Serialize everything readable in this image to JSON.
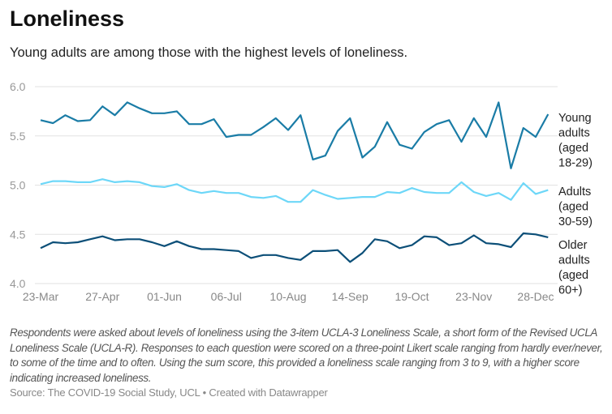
{
  "title": "Loneliness",
  "subtitle": "Young adults are among those with the highest levels of loneliness.",
  "notes": "Respondents were asked about levels of loneliness using the 3-item UCLA-3 Loneliness Scale, a short form of the Revised UCLA Loneliness Scale (UCLA-R). Responses to each question were scored on a three-point Likert scale ranging from hardly ever/never, to some of the time and to often. Using the sum score, this provided a loneliness scale ranging from 3 to 9, with a higher score indicating increased loneliness.",
  "source": "Source: The COVID-19 Social Study, UCL • Created with Datawrapper",
  "chart_data": {
    "type": "line",
    "title": "Loneliness",
    "xlabel": "",
    "ylabel": "",
    "ylim": [
      4.0,
      6.0
    ],
    "yticks": [
      "6.0",
      "5.5",
      "5.0",
      "4.5",
      "4.0"
    ],
    "grid": true,
    "legend": "direct labels right",
    "xticks": [
      "23-Mar",
      "27-Apr",
      "01-Jun",
      "06-Jul",
      "10-Aug",
      "14-Sep",
      "19-Oct",
      "23-Nov",
      "28-Dec"
    ],
    "x": [
      "23-Mar",
      "30-Mar",
      "06-Apr",
      "13-Apr",
      "20-Apr",
      "27-Apr",
      "04-May",
      "11-May",
      "18-May",
      "25-May",
      "01-Jun",
      "08-Jun",
      "15-Jun",
      "22-Jun",
      "29-Jun",
      "06-Jul",
      "13-Jul",
      "20-Jul",
      "27-Jul",
      "03-Aug",
      "10-Aug",
      "17-Aug",
      "24-Aug",
      "31-Aug",
      "07-Sep",
      "14-Sep",
      "21-Sep",
      "28-Sep",
      "05-Oct",
      "12-Oct",
      "19-Oct",
      "26-Oct",
      "02-Nov",
      "09-Nov",
      "16-Nov",
      "23-Nov",
      "30-Nov",
      "07-Dec",
      "14-Dec",
      "21-Dec",
      "28-Dec",
      "04-Jan"
    ],
    "series": [
      {
        "name": "Young adults (aged 18-29)",
        "label_lines": [
          "Young",
          "adults",
          "(aged",
          "18-29)"
        ],
        "color": "#1a7ca6",
        "values": [
          5.66,
          5.63,
          5.71,
          5.65,
          5.66,
          5.8,
          5.71,
          5.84,
          5.78,
          5.73,
          5.73,
          5.75,
          5.62,
          5.62,
          5.67,
          5.49,
          5.51,
          5.51,
          5.59,
          5.68,
          5.56,
          5.71,
          5.26,
          5.3,
          5.55,
          5.68,
          5.28,
          5.39,
          5.64,
          5.41,
          5.37,
          5.54,
          5.62,
          5.66,
          5.44,
          5.68,
          5.49,
          5.84,
          5.17,
          5.58,
          5.49,
          5.72
        ]
      },
      {
        "name": "Adults (aged 30-59)",
        "label_lines": [
          "Adults",
          "(aged",
          "30-59)"
        ],
        "color": "#6dd7f8",
        "values": [
          5.01,
          5.04,
          5.04,
          5.03,
          5.03,
          5.06,
          5.03,
          5.04,
          5.03,
          4.99,
          4.98,
          5.01,
          4.95,
          4.92,
          4.94,
          4.92,
          4.92,
          4.88,
          4.87,
          4.89,
          4.83,
          4.83,
          4.95,
          4.9,
          4.86,
          4.87,
          4.88,
          4.88,
          4.93,
          4.92,
          4.97,
          4.93,
          4.92,
          4.92,
          5.03,
          4.93,
          4.89,
          4.92,
          4.85,
          5.02,
          4.91,
          4.95
        ]
      },
      {
        "name": "Older adults (aged 60+)",
        "label_lines": [
          "Older",
          "adults",
          "(aged",
          "60+)"
        ],
        "color": "#0c4f78",
        "values": [
          4.36,
          4.42,
          4.41,
          4.42,
          4.45,
          4.48,
          4.44,
          4.45,
          4.45,
          4.42,
          4.38,
          4.43,
          4.38,
          4.35,
          4.35,
          4.34,
          4.33,
          4.26,
          4.29,
          4.29,
          4.26,
          4.24,
          4.33,
          4.33,
          4.34,
          4.22,
          4.31,
          4.45,
          4.43,
          4.36,
          4.39,
          4.48,
          4.47,
          4.39,
          4.41,
          4.49,
          4.41,
          4.4,
          4.37,
          4.51,
          4.5,
          4.47
        ]
      }
    ]
  }
}
